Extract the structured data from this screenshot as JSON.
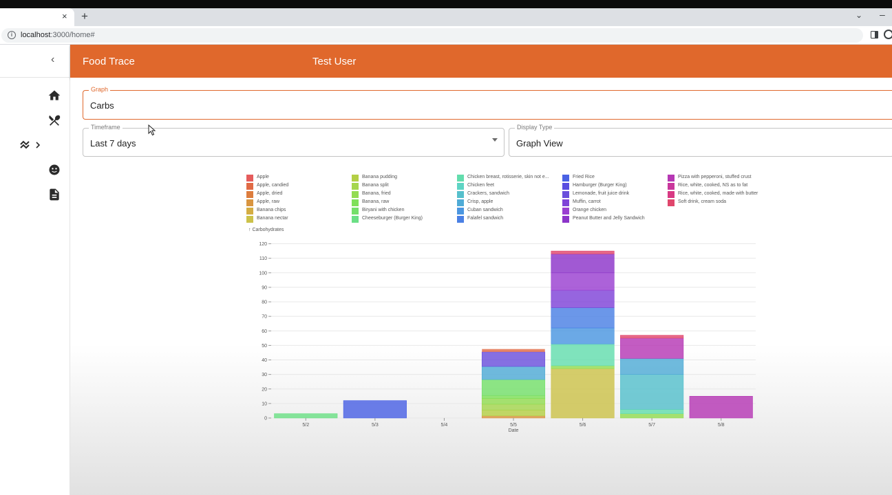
{
  "browser": {
    "url_host": "localhost",
    "url_rest": ":3000/home#",
    "close_tab_glyph": "×",
    "new_tab_glyph": "+",
    "tab_list_glyph": "⌄",
    "minimize_glyph": "–"
  },
  "app": {
    "title": "Food Trace",
    "user": "Test User",
    "brand_color": "#e0682c"
  },
  "nav": {
    "collapse_glyph": "‹",
    "items": [
      "home-icon",
      "restaurant-icon",
      "trending-icon",
      "face-icon",
      "document-icon"
    ]
  },
  "controls": {
    "graph": {
      "label": "Graph",
      "value": "Carbs"
    },
    "timeframe": {
      "label": "Timeframe",
      "value": "Last 7 days"
    },
    "display_type": {
      "label": "Display Type",
      "value": "Graph View"
    }
  },
  "chart_data": {
    "type": "bar",
    "stacked": true,
    "ylabel": "Carbohydrates",
    "xlabel": "Date",
    "ylim": [
      0,
      125
    ],
    "yticks": [
      0,
      10,
      20,
      30,
      40,
      50,
      60,
      70,
      80,
      90,
      100,
      110,
      120
    ],
    "grid": true,
    "legend_position": "top",
    "categories": [
      "5/2",
      "5/3",
      "5/4",
      "5/5",
      "5/6",
      "5/7",
      "5/8"
    ],
    "series": [
      {
        "name": "Apple",
        "color": "#e55c5c",
        "values": [
          0,
          0,
          0,
          0,
          0,
          0,
          0
        ]
      },
      {
        "name": "Apple, candied",
        "color": "#e06a45",
        "values": [
          0,
          0,
          0,
          0,
          0,
          0,
          0
        ]
      },
      {
        "name": "Apple, dried",
        "color": "#dd7d3d",
        "values": [
          0,
          0,
          0,
          0,
          0,
          0,
          0
        ]
      },
      {
        "name": "Apple, raw",
        "color": "#d99540",
        "values": [
          0,
          0,
          0,
          1.5,
          0,
          0,
          0
        ]
      },
      {
        "name": "Banana chips",
        "color": "#d4ad43",
        "values": [
          0,
          0,
          0,
          0,
          0,
          0,
          0
        ]
      },
      {
        "name": "Banana nectar",
        "color": "#ccc24a",
        "values": [
          0,
          0,
          0,
          0,
          34,
          0,
          0
        ]
      },
      {
        "name": "Banana pudding",
        "color": "#b4cf45",
        "values": [
          0,
          0,
          0,
          4,
          0,
          0,
          0
        ]
      },
      {
        "name": "Banana split",
        "color": "#a5d64e",
        "values": [
          0,
          0,
          0,
          4,
          0,
          0,
          0
        ]
      },
      {
        "name": "Banana, fried",
        "color": "#93dc52",
        "values": [
          0,
          0,
          0,
          4,
          2,
          3,
          0
        ]
      },
      {
        "name": "Banana, raw",
        "color": "#7fe05a",
        "values": [
          0,
          0,
          0,
          2,
          0,
          0,
          0
        ]
      },
      {
        "name": "Biryani with chicken",
        "color": "#74df6a",
        "values": [
          0,
          0,
          0,
          11,
          0,
          0,
          0
        ]
      },
      {
        "name": "Cheeseburger (Burger King)",
        "color": "#6bdf85",
        "values": [
          3,
          0,
          0,
          0,
          0,
          0,
          0
        ]
      },
      {
        "name": "Chicken breast, rotisserie, skin not e...",
        "color": "#63ddad",
        "values": [
          0,
          0,
          0,
          0,
          15,
          3,
          0
        ]
      },
      {
        "name": "Chicken feet",
        "color": "#5ed4c4",
        "values": [
          0,
          0,
          0,
          0,
          0,
          0,
          0
        ]
      },
      {
        "name": "Crackers, sandwich",
        "color": "#56c0cc",
        "values": [
          0,
          0,
          0,
          0,
          0,
          24,
          0
        ]
      },
      {
        "name": "Crisp, apple",
        "color": "#4fabd6",
        "values": [
          0,
          0,
          0,
          9,
          0,
          11,
          0
        ]
      },
      {
        "name": "Cuban sandwich",
        "color": "#4b96e0",
        "values": [
          0,
          0,
          0,
          0,
          11,
          0,
          0
        ]
      },
      {
        "name": "Falafel sandwich",
        "color": "#4a80e4",
        "values": [
          0,
          0,
          0,
          0,
          14,
          0,
          0
        ]
      },
      {
        "name": "Fried Rice",
        "color": "#4a62e4",
        "values": [
          0,
          12,
          0,
          0,
          0,
          0,
          0
        ]
      },
      {
        "name": "Hamburger (Burger King)",
        "color": "#5a4ee0",
        "values": [
          0,
          0,
          0,
          0,
          0,
          0,
          0
        ]
      },
      {
        "name": "Lemonade, fruit juice drink",
        "color": "#6a4fdc",
        "values": [
          0,
          0,
          0,
          10,
          0,
          0,
          0
        ]
      },
      {
        "name": "Muffin, carrot",
        "color": "#7f43d8",
        "values": [
          0,
          0,
          0,
          0,
          12,
          0,
          0
        ]
      },
      {
        "name": "Orange chicken",
        "color": "#9a3fd1",
        "values": [
          0,
          0,
          0,
          0,
          12,
          0,
          0
        ]
      },
      {
        "name": "Peanut Butter and Jelly Sandwich",
        "color": "#8c35c9",
        "values": [
          0,
          0,
          0,
          0,
          13,
          0,
          0
        ]
      },
      {
        "name": "Pizza with pepperoni, stuffed crust",
        "color": "#b638b4",
        "values": [
          0,
          0,
          0,
          0,
          0,
          14,
          15
        ]
      },
      {
        "name": "Rice, white, cooked, NS as to fat",
        "color": "#c9379c",
        "values": [
          0,
          0,
          0,
          0,
          0,
          0,
          0
        ]
      },
      {
        "name": "Rice, white, cooked, made with butter",
        "color": "#d83983",
        "values": [
          0,
          0,
          0,
          0,
          0,
          0,
          0
        ]
      },
      {
        "name": "Soft drink, cream soda",
        "color": "#e0466c",
        "values": [
          0,
          0,
          0,
          0,
          2,
          2,
          0
        ]
      }
    ],
    "extra_segments": [
      {
        "date": "5/5",
        "label": "top-cap",
        "color": "#e06a45",
        "value": 2
      }
    ]
  }
}
